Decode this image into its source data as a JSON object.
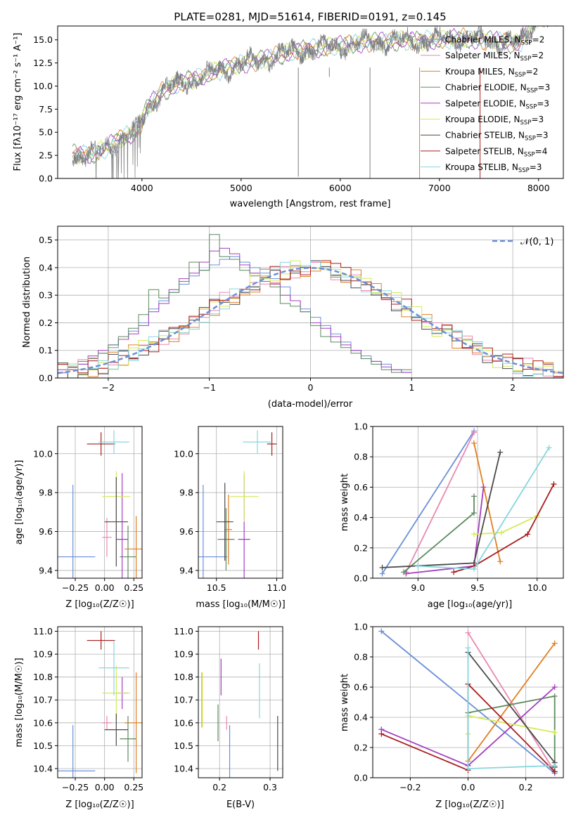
{
  "colors": {
    "chabrier_miles": "#6a8fd9",
    "salpeter_miles": "#e889b3",
    "kroupa_miles": "#e07f22",
    "chabrier_elodie": "#5d8a5e",
    "salpeter_elodie": "#a43fbf",
    "kroupa_elodie": "#d5ea57",
    "chabrier_stelib": "#4a4a4a",
    "salpeter_stelib": "#a81d1d",
    "kroupa_stelib": "#88d6df",
    "data": "#7f7f7f",
    "gaussian": "#6a8fd9",
    "grid": "#b0b0b0"
  },
  "chart_data": [
    {
      "id": "spectrum",
      "type": "line",
      "title": "PLATE=0281, MJD=51614, FIBERID=0191, z=0.145",
      "xlabel": "wavelength [Angstrom, rest frame]",
      "ylabel": "Flux [fλ10⁻¹⁷ erg cm⁻² s⁻¹ A⁻¹]",
      "xlim": [
        3150,
        8250
      ],
      "ylim": [
        0,
        16.5
      ],
      "xticks": [
        4000,
        5000,
        6000,
        7000,
        8000
      ],
      "yticks": [
        "0.0",
        "2.5",
        "5.0",
        "7.5",
        "10.0",
        "12.5",
        "15.0"
      ],
      "grid": false,
      "legend_position": "upper right",
      "legend": [
        "Chabrier MILES, N_SSP=2",
        "Salpeter MILES, N_SSP=2",
        "Kroupa MILES, N_SSP=2",
        "Chabrier ELODIE, N_SSP=3",
        "Salpeter ELODIE, N_SSP=3",
        "Kroupa ELODIE, N_SSP=3",
        "Chabrier STELIB, N_SSP=3",
        "Salpeter STELIB, N_SSP=4",
        "Kroupa STELIB, N_SSP=3"
      ],
      "continuum": {
        "x": [
          3300,
          3500,
          3600,
          3800,
          3950,
          4050,
          4200,
          4400,
          4600,
          4800,
          5000,
          5200,
          5400,
          5600,
          5800,
          6000,
          6200,
          6400,
          6600,
          6800,
          7000,
          7200,
          7400,
          7600,
          7800,
          8000
        ],
        "y": [
          2.6,
          2.6,
          3.1,
          4.4,
          5.1,
          7.6,
          9.4,
          10.4,
          11.0,
          11.8,
          12.4,
          12.8,
          13.4,
          13.9,
          14.1,
          14.4,
          14.6,
          14.8,
          14.9,
          14.9,
          15.0,
          15.2,
          15.0,
          14.9,
          14.5,
          17.5
        ]
      }
    },
    {
      "id": "residuals",
      "type": "histogram",
      "xlabel": "(data-model)/error",
      "ylabel": "Normed distribution",
      "xlim": [
        -2.5,
        2.5
      ],
      "ylim": [
        0,
        0.55
      ],
      "xticks": [
        "−2",
        "−1",
        "0",
        "1",
        "2"
      ],
      "yticks": [
        "0.0",
        "0.1",
        "0.2",
        "0.3",
        "0.4",
        "0.5"
      ],
      "grid": true,
      "legend_position": "upper right",
      "legend": [
        "𝒩(0, 1)"
      ],
      "bin_width": 0.1,
      "series": [
        {
          "model": "chabrier_miles",
          "y": [
            0.02,
            0.03,
            0.05,
            0.07,
            0.09,
            0.11,
            0.14,
            0.17,
            0.2,
            0.25,
            0.28,
            0.31,
            0.34,
            0.37,
            0.39,
            0.41,
            0.43,
            0.44,
            0.42,
            0.4,
            0.38,
            0.36,
            0.33,
            0.28,
            0.25,
            0.22,
            0.19,
            0.16,
            0.13,
            0.1,
            0.08,
            0.06,
            0.05,
            0.03,
            0.02
          ]
        },
        {
          "model": "salpeter_elodie",
          "y": [
            0.03,
            0.03,
            0.05,
            0.08,
            0.1,
            0.12,
            0.14,
            0.16,
            0.19,
            0.24,
            0.27,
            0.32,
            0.36,
            0.38,
            0.42,
            0.46,
            0.47,
            0.45,
            0.41,
            0.38,
            0.35,
            0.34,
            0.3,
            0.28,
            0.24,
            0.2,
            0.18,
            0.15,
            0.12,
            0.1,
            0.07,
            0.06,
            0.04,
            0.03,
            0.02
          ]
        },
        {
          "model": "chabrier_elodie",
          "y": [
            0.02,
            0.04,
            0.06,
            0.07,
            0.09,
            0.12,
            0.15,
            0.18,
            0.23,
            0.32,
            0.29,
            0.31,
            0.35,
            0.42,
            0.39,
            0.52,
            0.44,
            0.43,
            0.39,
            0.37,
            0.35,
            0.33,
            0.27,
            0.26,
            0.24,
            0.19,
            0.15,
            0.13,
            0.11,
            0.09,
            0.07,
            0.05,
            0.03,
            0.02,
            0.03
          ]
        }
      ]
    },
    {
      "id": "age_vs_Z",
      "type": "errorbar",
      "xlabel": "Z [log₁₀(Z/Z☉)]",
      "ylabel": "age  [log₁₀(age/yr)]",
      "xlim": [
        -0.4,
        0.32
      ],
      "ylim": [
        9.36,
        10.14
      ],
      "xticks": [
        "−0.25",
        "0.00",
        "0.25"
      ],
      "yticks": [
        "9.4",
        "9.6",
        "9.8",
        "10.0"
      ],
      "grid": true,
      "points": [
        {
          "model": "chabrier_miles",
          "x": -0.27,
          "xerr": 0.19,
          "y": 9.47,
          "yerr": 0.37
        },
        {
          "model": "salpeter_miles",
          "x": 0.02,
          "xerr": 0.04,
          "y": 9.57,
          "yerr": 0.1
        },
        {
          "model": "kroupa_miles",
          "x": 0.27,
          "xerr": 0.1,
          "y": 9.51,
          "yerr": 0.17
        },
        {
          "model": "chabrier_elodie",
          "x": 0.2,
          "xerr": 0.07,
          "y": 9.47,
          "yerr": 0.16
        },
        {
          "model": "salpeter_elodie",
          "x": 0.15,
          "xerr": 0.05,
          "y": 9.56,
          "yerr": 0.34
        },
        {
          "model": "kroupa_elodie",
          "x": 0.1,
          "xerr": 0.12,
          "y": 9.78,
          "yerr": 0.13
        },
        {
          "model": "chabrier_stelib",
          "x": 0.1,
          "xerr": 0.1,
          "y": 9.65,
          "yerr": 0.23
        },
        {
          "model": "salpeter_stelib",
          "x": -0.03,
          "xerr": 0.12,
          "y": 10.05,
          "yerr": 0.06
        },
        {
          "model": "kroupa_stelib",
          "x": 0.08,
          "xerr": 0.13,
          "y": 10.06,
          "yerr": 0.06
        }
      ]
    },
    {
      "id": "age_vs_mass",
      "type": "errorbar",
      "xlabel": "mass [log₁₀(M/M☉)]",
      "ylabel": "",
      "xlim": [
        10.35,
        11.05
      ],
      "ylim": [
        9.36,
        10.14
      ],
      "xticks": [
        "10.5",
        "11.0"
      ],
      "yticks": [
        "9.4",
        "9.6",
        "9.8",
        "10.0"
      ],
      "grid": true,
      "points": [
        {
          "model": "chabrier_miles",
          "x": 10.39,
          "xerr": 0.2,
          "y": 9.47,
          "yerr": 0.37
        },
        {
          "model": "salpeter_miles",
          "x": 10.6,
          "xerr": 0.03,
          "y": 9.56,
          "yerr": 0.1
        },
        {
          "model": "kroupa_miles",
          "x": 10.6,
          "xerr": 0.03,
          "y": 9.61,
          "yerr": 0.18
        },
        {
          "model": "chabrier_elodie",
          "x": 10.58,
          "xerr": 0.07,
          "y": 9.56,
          "yerr": 0.16
        },
        {
          "model": "salpeter_elodie",
          "x": 10.73,
          "xerr": 0.05,
          "y": 9.56,
          "yerr": 0.33
        },
        {
          "model": "kroupa_elodie",
          "x": 10.73,
          "xerr": 0.12,
          "y": 9.78,
          "yerr": 0.13
        },
        {
          "model": "chabrier_stelib",
          "x": 10.57,
          "xerr": 0.07,
          "y": 9.65,
          "yerr": 0.2
        },
        {
          "model": "salpeter_stelib",
          "x": 10.96,
          "xerr": 0.04,
          "y": 10.05,
          "yerr": 0.06
        },
        {
          "model": "kroupa_stelib",
          "x": 10.84,
          "xerr": 0.12,
          "y": 10.06,
          "yerr": 0.06
        }
      ]
    },
    {
      "id": "weight_vs_age",
      "type": "line",
      "xlabel": "age  [log₁₀(age/yr)]",
      "ylabel": "mass weight",
      "xlim": [
        8.62,
        10.22
      ],
      "ylim": [
        0,
        1
      ],
      "xticks": [
        "9.0",
        "9.5",
        "10.0"
      ],
      "yticks": [
        "0.0",
        "0.2",
        "0.4",
        "0.6",
        "0.8",
        "1.0"
      ],
      "grid": true,
      "series": [
        {
          "model": "chabrier_miles",
          "x": [
            8.7,
            9.47
          ],
          "y": [
            0.03,
            0.97
          ]
        },
        {
          "model": "salpeter_miles",
          "x": [
            8.9,
            9.47
          ],
          "y": [
            0.04,
            0.96
          ]
        },
        {
          "model": "kroupa_miles",
          "x": [
            9.47,
            9.69
          ],
          "y": [
            0.89,
            0.11
          ]
        },
        {
          "model": "chabrier_elodie",
          "x": [
            8.88,
            9.47,
            9.47
          ],
          "y": [
            0.04,
            0.43,
            0.54
          ]
        },
        {
          "model": "salpeter_elodie",
          "x": [
            8.9,
            9.47,
            9.55
          ],
          "y": [
            0.03,
            0.08,
            0.6
          ]
        },
        {
          "model": "kroupa_elodie",
          "x": [
            9.47,
            9.7,
            10.0
          ],
          "y": [
            0.29,
            0.3,
            0.41
          ]
        },
        {
          "model": "chabrier_stelib",
          "x": [
            8.7,
            9.47,
            9.69
          ],
          "y": [
            0.07,
            0.1,
            0.83
          ]
        },
        {
          "model": "salpeter_stelib",
          "x": [
            9.3,
            9.47,
            9.92,
            10.14
          ],
          "y": [
            0.04,
            0.08,
            0.29,
            0.62
          ]
        },
        {
          "model": "kroupa_stelib",
          "x": [
            9.0,
            9.47,
            10.1
          ],
          "y": [
            0.08,
            0.06,
            0.86
          ]
        }
      ]
    },
    {
      "id": "mass_vs_Z",
      "type": "errorbar",
      "xlabel": "Z [log₁₀(Z/Z☉)]",
      "ylabel": "mass [log₁₀(M/M☉)]",
      "xlim": [
        -0.4,
        0.32
      ],
      "ylim": [
        10.36,
        11.02
      ],
      "xticks": [
        "−0.25",
        "0.00",
        "0.25"
      ],
      "yticks": [
        "10.4",
        "10.5",
        "10.6",
        "10.7",
        "10.8",
        "10.9",
        "11.0"
      ],
      "grid": true,
      "points": [
        {
          "model": "chabrier_miles",
          "x": -0.27,
          "xerr": 0.19,
          "y": 10.39,
          "yerr": 0.2
        },
        {
          "model": "salpeter_miles",
          "x": 0.02,
          "xerr": 0.04,
          "y": 10.6,
          "yerr": 0.03
        },
        {
          "model": "kroupa_miles",
          "x": 0.27,
          "xerr": 0.1,
          "y": 10.6,
          "yerr": 0.22
        },
        {
          "model": "chabrier_elodie",
          "x": 0.2,
          "xerr": 0.07,
          "y": 10.53,
          "yerr": 0.1
        },
        {
          "model": "salpeter_elodie",
          "x": 0.15,
          "xerr": 0.05,
          "y": 10.73,
          "yerr": 0.07
        },
        {
          "model": "kroupa_elodie",
          "x": 0.1,
          "xerr": 0.12,
          "y": 10.73,
          "yerr": 0.12
        },
        {
          "model": "chabrier_stelib",
          "x": 0.1,
          "xerr": 0.1,
          "y": 10.57,
          "yerr": 0.07
        },
        {
          "model": "salpeter_stelib",
          "x": -0.03,
          "xerr": 0.12,
          "y": 10.96,
          "yerr": 0.04
        },
        {
          "model": "kroupa_stelib",
          "x": 0.08,
          "xerr": 0.13,
          "y": 10.84,
          "yerr": 0.12
        }
      ]
    },
    {
      "id": "mass_vs_ebv",
      "type": "errorbar",
      "xlabel": "E(B-V)",
      "ylabel": "",
      "xlim": [
        0.158,
        0.325
      ],
      "ylim": [
        10.36,
        11.02
      ],
      "xticks": [
        "0.2",
        "0.3"
      ],
      "yticks": [
        "10.4",
        "10.5",
        "10.6",
        "10.7",
        "10.8",
        "10.9",
        "11.0"
      ],
      "grid": true,
      "points": [
        {
          "model": "chabrier_miles",
          "x": 0.22,
          "xerr": 0,
          "y": 10.39,
          "yerr": 0.2
        },
        {
          "model": "salpeter_miles",
          "x": 0.214,
          "xerr": 0,
          "y": 10.6,
          "yerr": 0.03
        },
        {
          "model": "kroupa_miles",
          "x": 0.165,
          "xerr": 0,
          "y": 10.7,
          "yerr": 0.12
        },
        {
          "model": "chabrier_elodie",
          "x": 0.197,
          "xerr": 0,
          "y": 10.6,
          "yerr": 0.08
        },
        {
          "model": "salpeter_elodie",
          "x": 0.203,
          "xerr": 0,
          "y": 10.8,
          "yerr": 0.08
        },
        {
          "model": "kroupa_elodie",
          "x": 0.166,
          "xerr": 0,
          "y": 10.7,
          "yerr": 0.12
        },
        {
          "model": "chabrier_stelib",
          "x": 0.315,
          "xerr": 0,
          "y": 10.51,
          "yerr": 0.12
        },
        {
          "model": "salpeter_stelib",
          "x": 0.277,
          "xerr": 0,
          "y": 10.96,
          "yerr": 0.04
        },
        {
          "model": "kroupa_stelib",
          "x": 0.279,
          "xerr": 0,
          "y": 10.74,
          "yerr": 0.12
        }
      ]
    },
    {
      "id": "weight_vs_Z",
      "type": "line",
      "xlabel": "Z [log₁₀(Z/Z☉)]",
      "ylabel": "mass weight",
      "xlim": [
        -0.33,
        0.33
      ],
      "ylim": [
        0,
        1
      ],
      "xticks": [
        "−0.2",
        "0.0",
        "0.2"
      ],
      "yticks": [
        "0.0",
        "0.2",
        "0.4",
        "0.6",
        "0.8",
        "1.0"
      ],
      "grid": true,
      "series": [
        {
          "model": "chabrier_miles",
          "x": [
            -0.3,
            0.3
          ],
          "y": [
            0.97,
            0.03
          ]
        },
        {
          "model": "salpeter_miles",
          "x": [
            0.0,
            0.3
          ],
          "y": [
            0.96,
            0.04
          ]
        },
        {
          "model": "kroupa_miles",
          "x": [
            0.0,
            0.3
          ],
          "y": [
            0.11,
            0.89
          ]
        },
        {
          "model": "chabrier_elodie",
          "x": [
            0.0,
            0.3,
            0.3
          ],
          "y": [
            0.43,
            0.54,
            0.04
          ]
        },
        {
          "model": "salpeter_elodie",
          "x": [
            -0.3,
            0.0,
            0.3
          ],
          "y": [
            0.32,
            0.08,
            0.6
          ]
        },
        {
          "model": "kroupa_elodie",
          "x": [
            0.0,
            0.0,
            0.3
          ],
          "y": [
            0.29,
            0.41,
            0.3
          ]
        },
        {
          "model": "chabrier_stelib",
          "x": [
            0.0,
            0.3,
            0.3
          ],
          "y": [
            0.83,
            0.1,
            0.07
          ]
        },
        {
          "model": "salpeter_stelib",
          "x": [
            -0.3,
            0.0,
            0.0,
            0.3
          ],
          "y": [
            0.29,
            0.05,
            0.62,
            0.04
          ]
        },
        {
          "model": "kroupa_stelib",
          "x": [
            0.0,
            0.0,
            0.3
          ],
          "y": [
            0.86,
            0.06,
            0.08
          ]
        }
      ]
    }
  ]
}
